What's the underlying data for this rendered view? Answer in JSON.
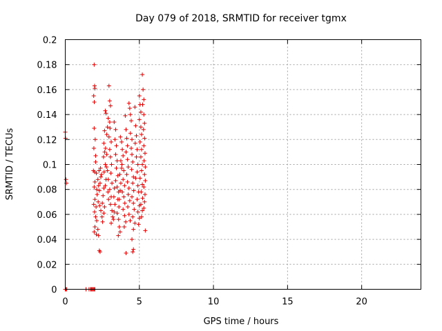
{
  "chart_data": {
    "type": "scatter",
    "title": "Day 079 of 2018, SRMTID for receiver tgmx",
    "xlabel": "GPS time / hours",
    "ylabel": "SRMTID / TECUs",
    "xlim": [
      0,
      24
    ],
    "ylim": [
      0,
      0.2
    ],
    "xticks": [
      0,
      5,
      10,
      15,
      20
    ],
    "xtick_labels": [
      "0",
      "5",
      "10",
      "15",
      "20"
    ],
    "yticks": [
      0,
      0.02,
      0.04,
      0.06,
      0.08,
      0.1,
      0.12,
      0.14,
      0.16,
      0.18,
      0.2
    ],
    "ytick_labels": [
      "0",
      "0.02",
      "0.04",
      "0.06",
      "0.08",
      "0.1",
      "0.12",
      "0.14",
      "0.16",
      "0.18",
      "0.2"
    ],
    "grid": true,
    "marker": "+",
    "color": "#e00000",
    "series": [
      {
        "name": "SRMTID",
        "points": [
          [
            0.0,
            0.126
          ],
          [
            0.02,
            0.121
          ],
          [
            0.05,
            0.088
          ],
          [
            0.08,
            0.085
          ],
          [
            0.0,
            0.0
          ],
          [
            0.05,
            0.0
          ],
          [
            0.1,
            0.0
          ],
          [
            1.4,
            0.0
          ],
          [
            1.6,
            0.0
          ],
          [
            1.7,
            0.0
          ],
          [
            1.75,
            0.0
          ],
          [
            1.8,
            0.0
          ],
          [
            1.85,
            0.0
          ],
          [
            1.9,
            0.0
          ],
          [
            1.95,
            0.0
          ],
          [
            2.0,
            0.0
          ],
          [
            1.95,
            0.18
          ],
          [
            1.98,
            0.163
          ],
          [
            2.0,
            0.161
          ],
          [
            1.92,
            0.155
          ],
          [
            1.96,
            0.15
          ],
          [
            1.95,
            0.129
          ],
          [
            2.02,
            0.12
          ],
          [
            1.93,
            0.113
          ],
          [
            2.05,
            0.107
          ],
          [
            2.05,
            0.102
          ],
          [
            1.9,
            0.095
          ],
          [
            1.98,
            0.094
          ],
          [
            2.1,
            0.093
          ],
          [
            2.0,
            0.086
          ],
          [
            1.95,
            0.082
          ],
          [
            2.12,
            0.08
          ],
          [
            2.15,
            0.076
          ],
          [
            2.0,
            0.072
          ],
          [
            1.92,
            0.068
          ],
          [
            2.08,
            0.066
          ],
          [
            1.98,
            0.062
          ],
          [
            2.05,
            0.058
          ],
          [
            2.12,
            0.055
          ],
          [
            2.0,
            0.05
          ],
          [
            1.95,
            0.046
          ],
          [
            2.1,
            0.044
          ],
          [
            2.2,
            0.048
          ],
          [
            2.25,
            0.043
          ],
          [
            2.3,
            0.031
          ],
          [
            2.35,
            0.03
          ],
          [
            2.2,
            0.088
          ],
          [
            2.25,
            0.083
          ],
          [
            2.3,
            0.079
          ],
          [
            2.35,
            0.085
          ],
          [
            2.4,
            0.09
          ],
          [
            2.28,
            0.095
          ],
          [
            2.38,
            0.097
          ],
          [
            2.45,
            0.092
          ],
          [
            2.22,
            0.07
          ],
          [
            2.32,
            0.067
          ],
          [
            2.4,
            0.063
          ],
          [
            2.5,
            0.069
          ],
          [
            2.55,
            0.075
          ],
          [
            2.6,
            0.081
          ],
          [
            2.48,
            0.058
          ],
          [
            2.52,
            0.054
          ],
          [
            2.6,
            0.061
          ],
          [
            2.65,
            0.066
          ],
          [
            2.7,
            0.083
          ],
          [
            2.75,
            0.088
          ],
          [
            2.62,
            0.094
          ],
          [
            2.7,
            0.1
          ],
          [
            2.58,
            0.106
          ],
          [
            2.66,
            0.11
          ],
          [
            2.6,
            0.117
          ],
          [
            2.72,
            0.113
          ],
          [
            2.8,
            0.108
          ],
          [
            2.78,
            0.098
          ],
          [
            2.85,
            0.095
          ],
          [
            2.9,
            0.088
          ],
          [
            2.88,
            0.078
          ],
          [
            2.92,
            0.072
          ],
          [
            2.7,
            0.143
          ],
          [
            2.75,
            0.141
          ],
          [
            2.65,
            0.127
          ],
          [
            2.8,
            0.124
          ],
          [
            2.85,
            0.13
          ],
          [
            2.95,
            0.163
          ],
          [
            3.0,
            0.151
          ],
          [
            3.05,
            0.147
          ],
          [
            2.9,
            0.137
          ],
          [
            3.0,
            0.134
          ],
          [
            3.02,
            0.129
          ],
          [
            2.95,
            0.122
          ],
          [
            3.1,
            0.118
          ],
          [
            3.0,
            0.112
          ],
          [
            3.05,
            0.106
          ],
          [
            3.12,
            0.1
          ],
          [
            3.08,
            0.093
          ],
          [
            3.15,
            0.085
          ],
          [
            3.0,
            0.08
          ],
          [
            3.1,
            0.074
          ],
          [
            3.05,
            0.068
          ],
          [
            3.15,
            0.063
          ],
          [
            3.2,
            0.058
          ],
          [
            3.1,
            0.053
          ],
          [
            3.25,
            0.056
          ],
          [
            3.3,
            0.062
          ],
          [
            3.35,
            0.068
          ],
          [
            3.28,
            0.074
          ],
          [
            3.32,
            0.081
          ],
          [
            3.3,
            0.134
          ],
          [
            3.4,
            0.128
          ],
          [
            3.35,
            0.12
          ],
          [
            3.45,
            0.115
          ],
          [
            3.4,
            0.108
          ],
          [
            3.5,
            0.103
          ],
          [
            3.45,
            0.097
          ],
          [
            3.55,
            0.091
          ],
          [
            3.4,
            0.087
          ],
          [
            3.5,
            0.082
          ],
          [
            3.6,
            0.078
          ],
          [
            3.55,
            0.072
          ],
          [
            3.62,
            0.066
          ],
          [
            3.5,
            0.061
          ],
          [
            3.6,
            0.056
          ],
          [
            3.65,
            0.05
          ],
          [
            3.7,
            0.046
          ],
          [
            3.58,
            0.043
          ],
          [
            3.65,
            0.072
          ],
          [
            3.7,
            0.079
          ],
          [
            3.75,
            0.085
          ],
          [
            3.68,
            0.092
          ],
          [
            3.8,
            0.097
          ],
          [
            3.75,
            0.103
          ],
          [
            3.72,
            0.122
          ],
          [
            3.8,
            0.118
          ],
          [
            3.85,
            0.112
          ],
          [
            3.9,
            0.107
          ],
          [
            3.82,
            0.1
          ],
          [
            3.95,
            0.095
          ],
          [
            3.9,
            0.088
          ],
          [
            4.0,
            0.083
          ],
          [
            3.85,
            0.078
          ],
          [
            3.95,
            0.074
          ],
          [
            4.02,
            0.069
          ],
          [
            3.9,
            0.064
          ],
          [
            4.0,
            0.059
          ],
          [
            4.08,
            0.054
          ],
          [
            3.98,
            0.05
          ],
          [
            4.05,
            0.139
          ],
          [
            4.1,
            0.128
          ],
          [
            4.15,
            0.121
          ],
          [
            4.2,
            0.115
          ],
          [
            4.1,
            0.11
          ],
          [
            4.2,
            0.104
          ],
          [
            4.25,
            0.098
          ],
          [
            4.15,
            0.092
          ],
          [
            4.2,
            0.086
          ],
          [
            4.3,
            0.081
          ],
          [
            4.25,
            0.076
          ],
          [
            4.35,
            0.071
          ],
          [
            4.22,
            0.066
          ],
          [
            4.3,
            0.06
          ],
          [
            4.38,
            0.055
          ],
          [
            4.1,
            0.029
          ],
          [
            4.3,
            0.149
          ],
          [
            4.35,
            0.145
          ],
          [
            4.4,
            0.14
          ],
          [
            4.45,
            0.135
          ],
          [
            4.4,
            0.125
          ],
          [
            4.5,
            0.12
          ],
          [
            4.45,
            0.113
          ],
          [
            4.5,
            0.108
          ],
          [
            4.55,
            0.102
          ],
          [
            4.48,
            0.096
          ],
          [
            4.6,
            0.09
          ],
          [
            4.55,
            0.085
          ],
          [
            4.62,
            0.079
          ],
          [
            4.5,
            0.074
          ],
          [
            4.6,
            0.069
          ],
          [
            4.65,
            0.064
          ],
          [
            4.55,
            0.058
          ],
          [
            4.7,
            0.053
          ],
          [
            4.6,
            0.048
          ],
          [
            4.5,
            0.04
          ],
          [
            4.55,
            0.03
          ],
          [
            4.6,
            0.032
          ],
          [
            4.7,
            0.146
          ],
          [
            4.75,
            0.131
          ],
          [
            4.8,
            0.123
          ],
          [
            4.72,
            0.117
          ],
          [
            4.85,
            0.112
          ],
          [
            4.8,
            0.106
          ],
          [
            4.9,
            0.1
          ],
          [
            4.85,
            0.094
          ],
          [
            4.75,
            0.089
          ],
          [
            4.9,
            0.083
          ],
          [
            4.95,
            0.078
          ],
          [
            4.85,
            0.072
          ],
          [
            5.0,
            0.067
          ],
          [
            4.9,
            0.062
          ],
          [
            5.0,
            0.057
          ],
          [
            4.95,
            0.052
          ],
          [
            5.0,
            0.155
          ],
          [
            5.05,
            0.148
          ],
          [
            5.1,
            0.142
          ],
          [
            5.0,
            0.136
          ],
          [
            5.1,
            0.13
          ],
          [
            5.15,
            0.124
          ],
          [
            5.05,
            0.118
          ],
          [
            5.15,
            0.112
          ],
          [
            5.1,
            0.106
          ],
          [
            5.2,
            0.1
          ],
          [
            5.15,
            0.095
          ],
          [
            5.05,
            0.089
          ],
          [
            5.2,
            0.084
          ],
          [
            5.12,
            0.078
          ],
          [
            5.22,
            0.073
          ],
          [
            5.1,
            0.068
          ],
          [
            5.2,
            0.063
          ],
          [
            5.15,
            0.058
          ],
          [
            5.2,
            0.172
          ],
          [
            5.25,
            0.16
          ],
          [
            5.3,
            0.152
          ],
          [
            5.22,
            0.148
          ],
          [
            5.3,
            0.14
          ],
          [
            5.35,
            0.133
          ],
          [
            5.28,
            0.128
          ],
          [
            5.35,
            0.121
          ],
          [
            5.3,
            0.115
          ],
          [
            5.38,
            0.109
          ],
          [
            5.32,
            0.103
          ],
          [
            5.4,
            0.098
          ],
          [
            5.35,
            0.092
          ],
          [
            5.4,
            0.087
          ],
          [
            5.3,
            0.082
          ],
          [
            5.38,
            0.076
          ],
          [
            5.35,
            0.07
          ],
          [
            5.3,
            0.065
          ],
          [
            5.4,
            0.047
          ]
        ]
      }
    ]
  }
}
